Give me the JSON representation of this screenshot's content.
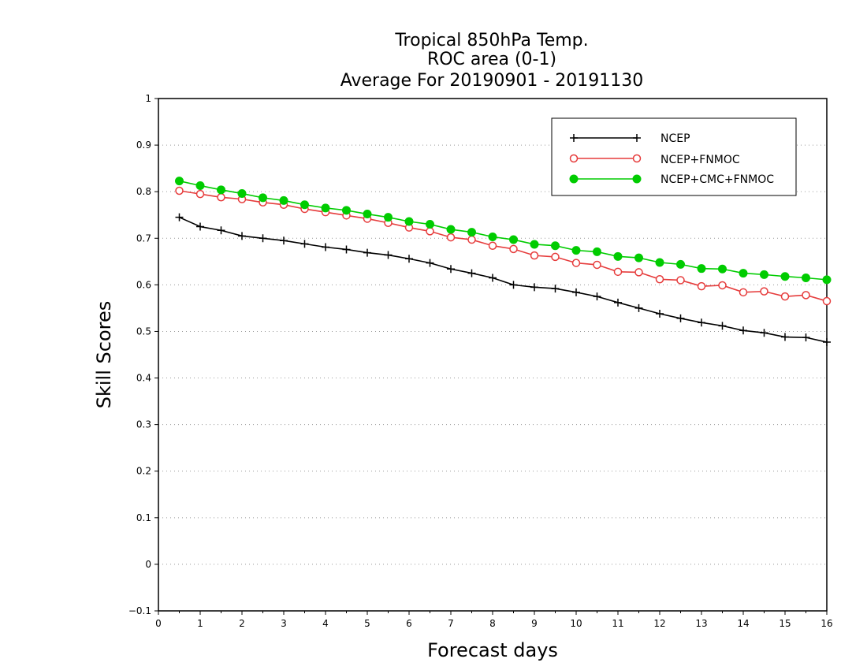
{
  "chart_data": {
    "type": "line",
    "title_lines": [
      "Tropical 850hPa Temp.",
      "ROC area (0-1)",
      "Average For 20190901 - 20191130"
    ],
    "xlabel": "Forecast days",
    "ylabel": "Skill Scores",
    "xlim": [
      0,
      16
    ],
    "ylim": [
      -0.1,
      1
    ],
    "x_ticks": [
      "0",
      "1",
      "2",
      "3",
      "4",
      "5",
      "6",
      "7",
      "8",
      "9",
      "10",
      "11",
      "12",
      "13",
      "14",
      "15",
      "16"
    ],
    "y_ticks": [
      "−0.1",
      "0",
      "0.1",
      "0.2",
      "0.3",
      "0.4",
      "0.5",
      "0.6",
      "0.7",
      "0.8",
      "0.9",
      "1"
    ],
    "grid": "horizontal-dotted",
    "legend_position": "top-right",
    "x": [
      0.5,
      1,
      1.5,
      2,
      2.5,
      3,
      3.5,
      4,
      4.5,
      5,
      5.5,
      6,
      6.5,
      7,
      7.5,
      8,
      8.5,
      9,
      9.5,
      10,
      10.5,
      11,
      11.5,
      12,
      12.5,
      13,
      13.5,
      14,
      14.5,
      15,
      15.5,
      16
    ],
    "series": [
      {
        "name": "NCEP",
        "color": "#000000",
        "marker": "plus",
        "values": [
          0.745,
          0.725,
          0.717,
          0.705,
          0.7,
          0.695,
          0.688,
          0.681,
          0.676,
          0.669,
          0.664,
          0.656,
          0.647,
          0.634,
          0.625,
          0.615,
          0.6,
          0.595,
          0.592,
          0.584,
          0.575,
          0.562,
          0.55,
          0.538,
          0.528,
          0.519,
          0.512,
          0.502,
          0.497,
          0.488,
          0.487,
          0.477
        ]
      },
      {
        "name": "NCEP+FNMOC",
        "color": "#e63c3c",
        "marker": "open-circle",
        "values": [
          0.802,
          0.795,
          0.788,
          0.784,
          0.777,
          0.772,
          0.763,
          0.756,
          0.749,
          0.742,
          0.733,
          0.723,
          0.715,
          0.702,
          0.697,
          0.684,
          0.677,
          0.663,
          0.66,
          0.647,
          0.643,
          0.628,
          0.627,
          0.612,
          0.61,
          0.597,
          0.599,
          0.584,
          0.586,
          0.575,
          0.578,
          0.565
        ]
      },
      {
        "name": "NCEP+CMC+FNMOC",
        "color": "#00cc00",
        "marker": "filled-circle",
        "values": [
          0.823,
          0.813,
          0.804,
          0.796,
          0.787,
          0.781,
          0.772,
          0.765,
          0.76,
          0.752,
          0.745,
          0.736,
          0.73,
          0.719,
          0.713,
          0.703,
          0.697,
          0.687,
          0.684,
          0.674,
          0.671,
          0.661,
          0.658,
          0.648,
          0.644,
          0.635,
          0.634,
          0.625,
          0.622,
          0.618,
          0.615,
          0.611
        ]
      }
    ]
  }
}
